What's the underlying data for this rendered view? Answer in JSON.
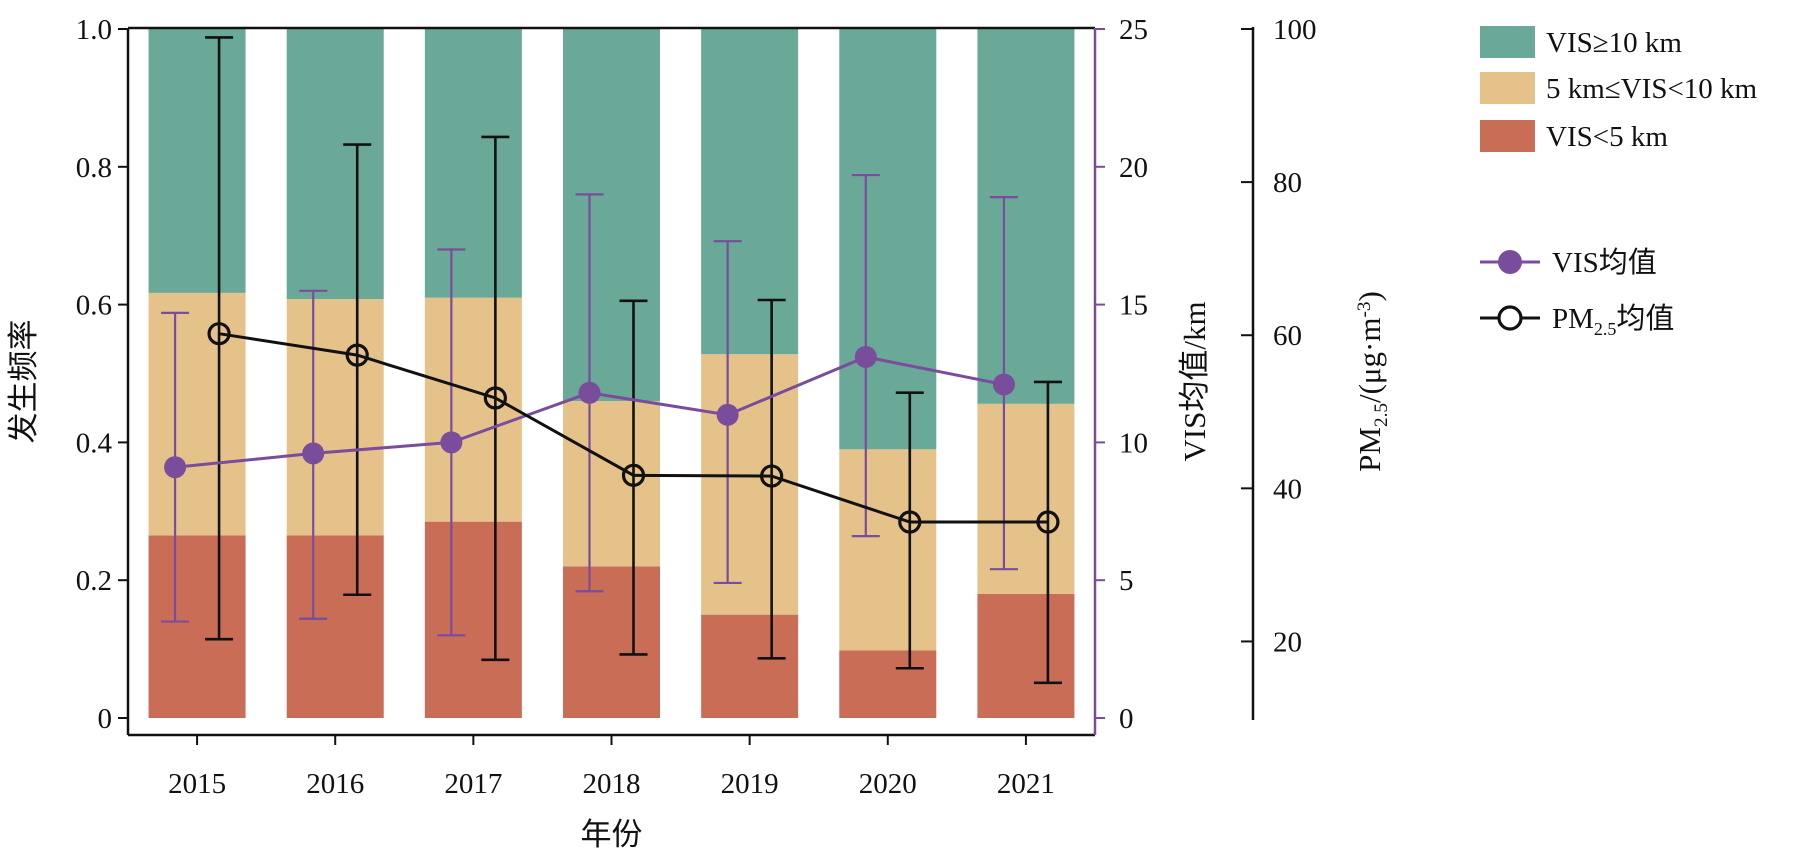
{
  "chart_data": {
    "type": "bar",
    "categories": [
      "2015",
      "2016",
      "2017",
      "2018",
      "2019",
      "2020",
      "2021"
    ],
    "xlabel": "年份",
    "ylabel_left": "发生频率",
    "ylabel_right1": "VIS均值/km",
    "ylabel_right2": "PM_{2.5}/(μg·m^{-3})",
    "ylim_left": [
      0,
      1.0
    ],
    "yticks_left": [
      "0",
      "0.2",
      "0.4",
      "0.6",
      "0.8",
      "1.0"
    ],
    "ylim_right1": [
      0,
      25
    ],
    "yticks_right1": [
      "0",
      "5",
      "10",
      "15",
      "20",
      "25"
    ],
    "ylim_right2": [
      10,
      100
    ],
    "yticks_right2": [
      "20",
      "40",
      "60",
      "80",
      "100"
    ],
    "stacked_bars": [
      {
        "name": "VIS<5 km",
        "color": "#c96d56",
        "values": [
          0.265,
          0.265,
          0.285,
          0.22,
          0.15,
          0.098,
          0.18
        ]
      },
      {
        "name": "5 km≤VIS<10 km",
        "color": "#e5c28a",
        "values": [
          0.352,
          0.343,
          0.325,
          0.24,
          0.378,
          0.292,
          0.276
        ]
      },
      {
        "name": "VIS≥10 km",
        "color": "#6aa898",
        "values": [
          0.383,
          0.392,
          0.39,
          0.54,
          0.472,
          0.61,
          0.544
        ]
      }
    ],
    "line_series": [
      {
        "name": "VIS均值",
        "color": "#7a4d9c",
        "axis": "right1",
        "marker": "filled-circle",
        "values": [
          9.1,
          9.6,
          10.0,
          11.8,
          11.0,
          13.1,
          12.1
        ],
        "error_low": [
          3.5,
          3.6,
          3.0,
          4.6,
          4.9,
          6.6,
          5.4
        ],
        "error_high": [
          14.7,
          15.5,
          17.0,
          19.0,
          17.3,
          19.7,
          18.9
        ]
      },
      {
        "name": "PM_{2.5}均值",
        "color": "#111111",
        "axis": "right2",
        "marker": "open-circle",
        "values": [
          60.2,
          57.4,
          51.8,
          41.7,
          41.6,
          35.6,
          35.6
        ],
        "error_low": [
          20.3,
          26.1,
          17.6,
          18.3,
          17.8,
          16.5,
          14.6
        ],
        "error_high": [
          98.9,
          84.9,
          85.9,
          64.5,
          64.6,
          52.5,
          53.9
        ]
      }
    ],
    "legend": {
      "placement": "right",
      "bar_entries": [
        "VIS≥10 km",
        "5 km≤VIS<10 km",
        "VIS<5 km"
      ],
      "line_entries": [
        "VIS均值",
        "PM_{2.5}均值"
      ]
    },
    "grid": false
  }
}
